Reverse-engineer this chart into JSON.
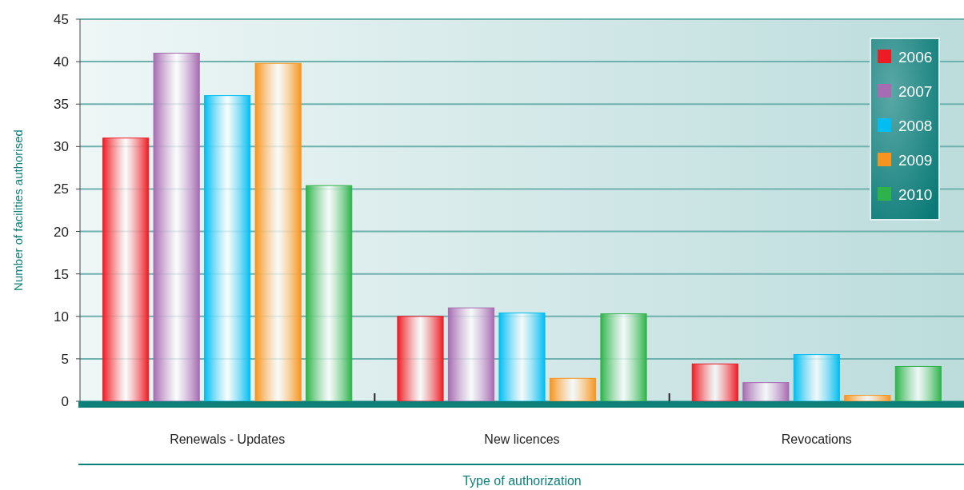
{
  "chart_data": {
    "type": "bar",
    "xlabel": "Type of authorization",
    "ylabel": "Number of facilities authorised",
    "categories": [
      "Renewals - Updates",
      "New licences",
      "Revocations"
    ],
    "series": [
      {
        "name": "2006",
        "color": "#ed1c24",
        "values": [
          31,
          10,
          4.4
        ]
      },
      {
        "name": "2007",
        "color": "#a66bb0",
        "values": [
          41,
          11,
          2.2
        ]
      },
      {
        "name": "2008",
        "color": "#00bdf2",
        "values": [
          36,
          10.4,
          5.5
        ]
      },
      {
        "name": "2009",
        "color": "#f7941d",
        "values": [
          39.8,
          2.7,
          0.7
        ]
      },
      {
        "name": "2010",
        "color": "#2db34a",
        "values": [
          25.4,
          10.3,
          4.1
        ]
      }
    ],
    "ylim": [
      0,
      45
    ],
    "yticks": [
      0,
      5,
      10,
      15,
      20,
      25,
      30,
      35,
      40,
      45
    ],
    "grid": "y",
    "legend": "top right"
  }
}
